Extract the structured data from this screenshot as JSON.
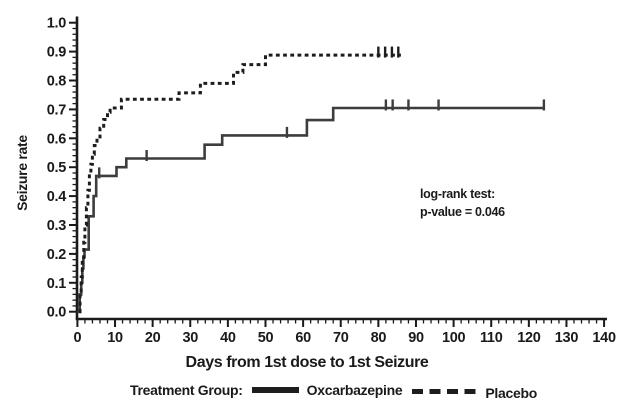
{
  "figure": {
    "ylabel": "Seizure rate",
    "xlabel": "Days from 1st dose to 1st Seizure",
    "annotation_line1": "log-rank test:",
    "annotation_line2": "p-value = 0.046",
    "legend_label": "Treatment Group:",
    "legend_series1": "Oxcarbazepine",
    "legend_series2": "Placebo"
  },
  "chart_data": {
    "type": "line",
    "variant": "kaplan_meier_step",
    "title": "",
    "xlabel": "Days from 1st dose to 1st Seizure",
    "ylabel": "Seizure rate",
    "xlim": [
      0,
      140
    ],
    "ylim": [
      0.0,
      1.0
    ],
    "grid": false,
    "legend_position": "bottom",
    "legend_title": "Treatment Group:",
    "x_tick_labels": [
      "0",
      "10",
      "20",
      "30",
      "40",
      "50",
      "60",
      "70",
      "80",
      "90",
      "100",
      "110",
      "120",
      "130",
      "140"
    ],
    "y_tick_labels": [
      "0.0",
      "0.1",
      "0.2",
      "0.3",
      "0.4",
      "0.5",
      "0.6",
      "0.7",
      "0.8",
      "0.9",
      "1.0"
    ],
    "x_minor_tick_step": 2,
    "y_minor_tick_step": 0.02,
    "annotation": [
      "log-rank test:",
      "p-value = 0.046"
    ],
    "axis_color": "#1a1a1a",
    "series": [
      {
        "name": "Oxcarbazepine",
        "line_style": "solid",
        "color": "#3d3d3d",
        "steps": [
          [
            0,
            0
          ],
          [
            0.6,
            0.06
          ],
          [
            1,
            0.1
          ],
          [
            1.3,
            0.15
          ],
          [
            1.6,
            0.19
          ],
          [
            1.9,
            0.215
          ],
          [
            3,
            0.33
          ],
          [
            4.3,
            0.4
          ],
          [
            5,
            0.47
          ],
          [
            10.4,
            0.5
          ],
          [
            13,
            0.53
          ],
          [
            33.8,
            0.578
          ],
          [
            38.5,
            0.61
          ],
          [
            61,
            0.663
          ],
          [
            68,
            0.705
          ],
          [
            124,
            0.705
          ]
        ],
        "censor_marks": [
          [
            5.8,
            0.47
          ],
          [
            18.4,
            0.53
          ],
          [
            55.7,
            0.61
          ],
          [
            82,
            0.705
          ],
          [
            83.8,
            0.705
          ],
          [
            88,
            0.705
          ],
          [
            96,
            0.705
          ],
          [
            124,
            0.705
          ]
        ]
      },
      {
        "name": "Placebo",
        "line_style": "dashed",
        "color": "#1d1d1d",
        "steps": [
          [
            0.4,
            0
          ],
          [
            0.7,
            0.06
          ],
          [
            1,
            0.12
          ],
          [
            1.3,
            0.18
          ],
          [
            1.7,
            0.24
          ],
          [
            2,
            0.3
          ],
          [
            2.4,
            0.36
          ],
          [
            2.8,
            0.42
          ],
          [
            3.2,
            0.47
          ],
          [
            3.6,
            0.51
          ],
          [
            4,
            0.545
          ],
          [
            4.5,
            0.575
          ],
          [
            5.2,
            0.605
          ],
          [
            6,
            0.635
          ],
          [
            7,
            0.665
          ],
          [
            8,
            0.69
          ],
          [
            8.7,
            0.705
          ],
          [
            11.7,
            0.735
          ],
          [
            27,
            0.757
          ],
          [
            32.7,
            0.79
          ],
          [
            41.5,
            0.828
          ],
          [
            44,
            0.855
          ],
          [
            50,
            0.888
          ],
          [
            86,
            0.888
          ]
        ],
        "censor_marks": [
          [
            80,
            0.888
          ],
          [
            81.8,
            0.888
          ],
          [
            83.6,
            0.888
          ],
          [
            85.3,
            0.888
          ]
        ]
      }
    ]
  }
}
